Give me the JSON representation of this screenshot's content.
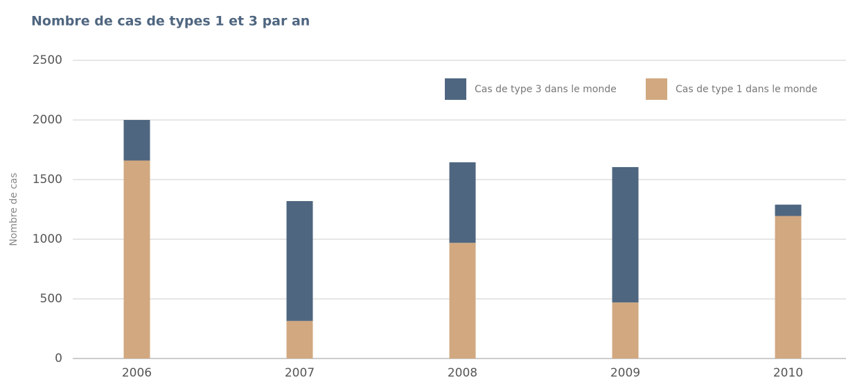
{
  "chart_data": {
    "type": "stacked_bar",
    "title": "Nombre de cas de types 1 et 3 par an",
    "ylabel": "Nombre de cas",
    "categories": [
      "2006",
      "2007",
      "2008",
      "2009",
      "2010"
    ],
    "series": [
      {
        "name": "Cas de type 3 dans le monde",
        "color": "#4f6680",
        "values": [
          340,
          1005,
          675,
          1135,
          95
        ]
      },
      {
        "name": "Cas de type 1 dans le monde",
        "color": "#d1a880",
        "values": [
          1660,
          315,
          970,
          470,
          1195
        ]
      }
    ],
    "ylim": [
      0,
      2500
    ],
    "yticks": [
      0,
      500,
      1000,
      1500,
      2000,
      2500
    ],
    "grid": true,
    "legend": "top-right"
  }
}
